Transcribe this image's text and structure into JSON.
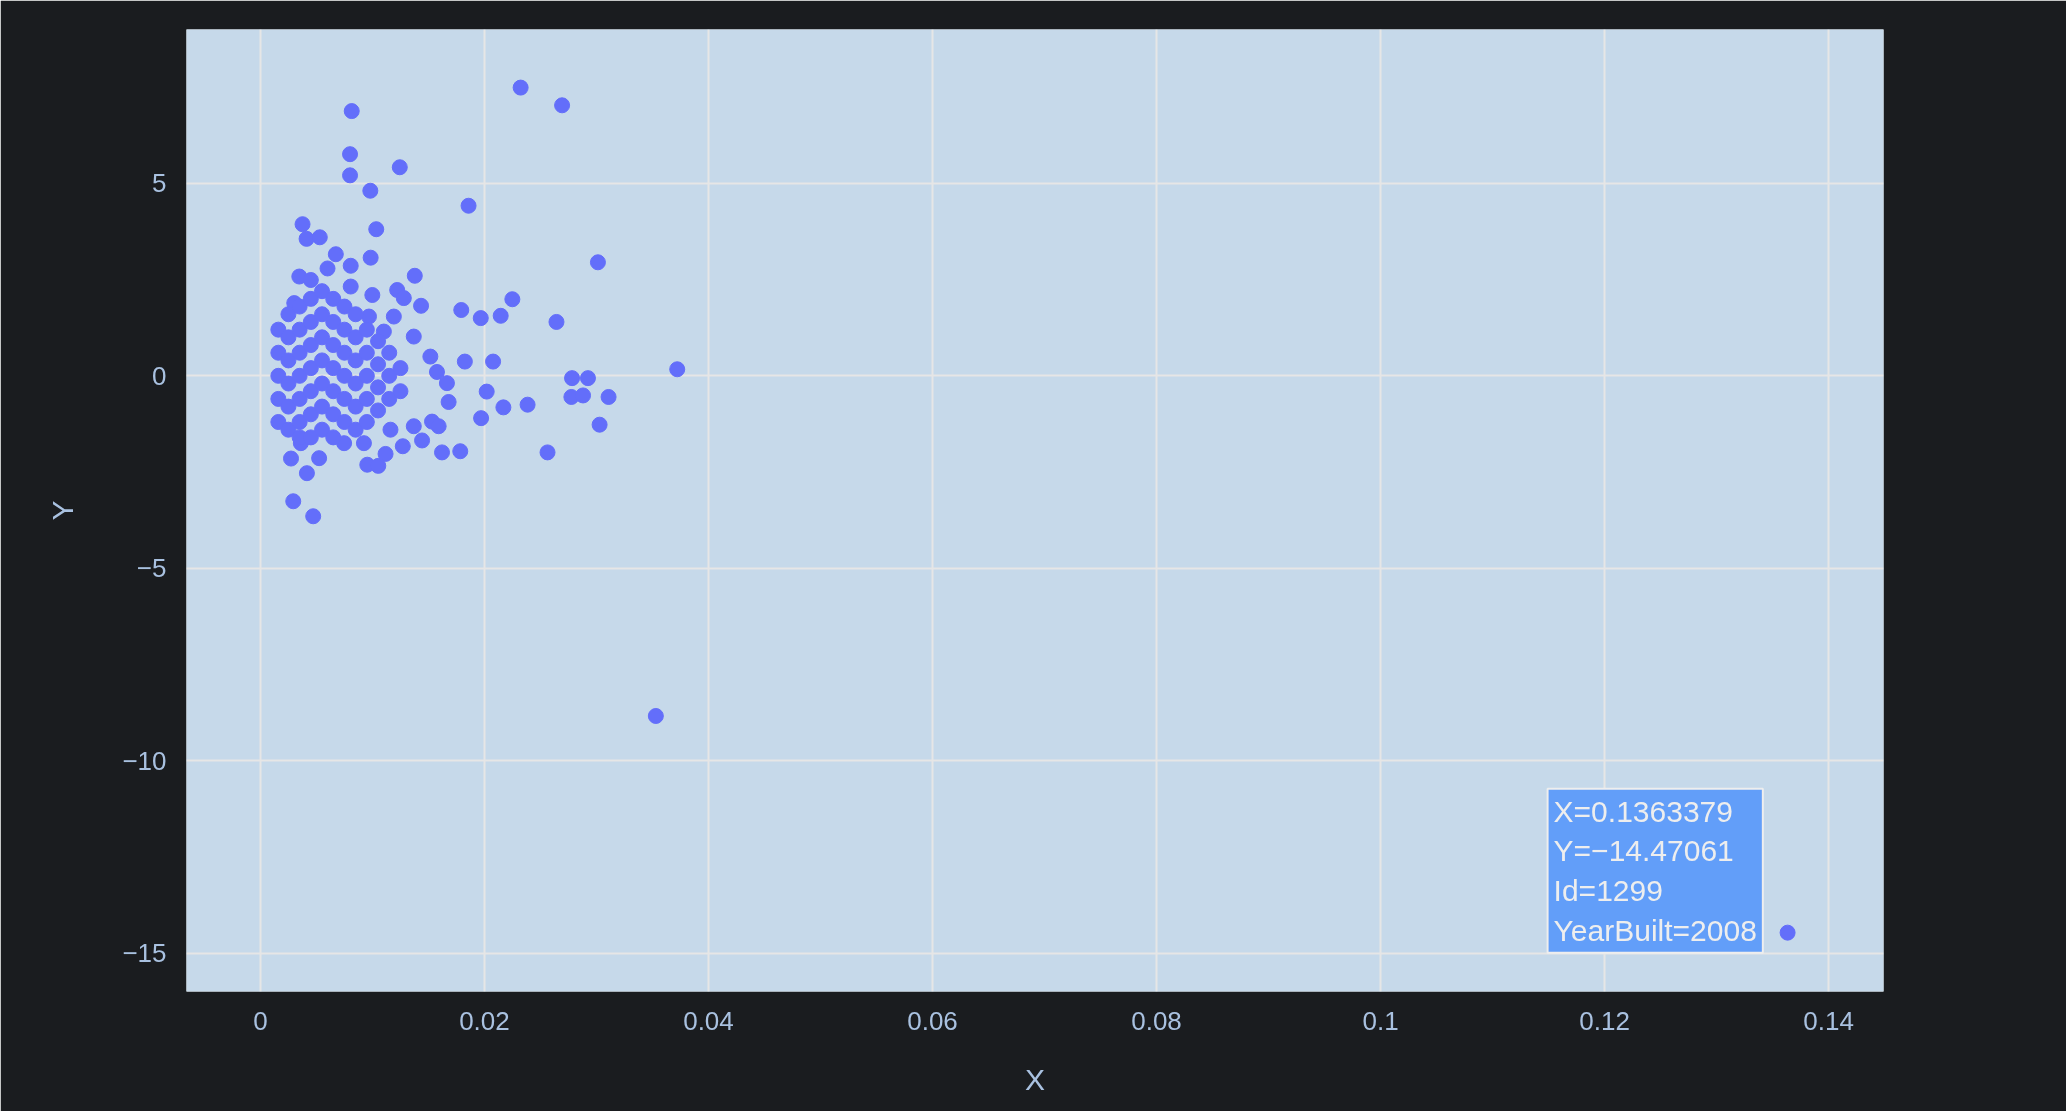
{
  "chart_data": {
    "type": "scatter",
    "xlabel": "X",
    "ylabel": "Y",
    "xlim": [
      -0.0066,
      0.1449
    ],
    "ylim": [
      -16.0,
      9.0
    ],
    "xticks": [
      0,
      0.02,
      0.04,
      0.06,
      0.08,
      0.1,
      0.12,
      0.14
    ],
    "yticks": [
      -15,
      -10,
      -5,
      0,
      5
    ],
    "grid": true,
    "marker": "circle",
    "annotations": [
      {
        "text": "X=0.1363379\nY=−14.47061\nId=1299\nYearBuilt=2008",
        "x": 0.1363379,
        "y": -14.47061
      }
    ],
    "series": [
      {
        "color": "#636efa",
        "x": [
          0.02323,
          0.02693,
          0.00815,
          0.008,
          0.008,
          0.01244,
          0.00981,
          0.01858,
          0.00376,
          0.00412,
          0.0053,
          0.01034,
          0.00673,
          0.00984,
          0.03013,
          0.01378,
          0.00806,
          0.02249,
          0.01793,
          0.01967,
          0.02145,
          0.02643,
          0.01434,
          0.02077,
          0.01825,
          0.03721,
          0.02782,
          0.02924,
          0.02776,
          0.0288,
          0.03108,
          0.03028,
          0.02563,
          0.02385,
          0.02169,
          0.0197,
          0.01784,
          0.01621,
          0.01443,
          0.01271,
          0.01117,
          0.00954,
          0.01052,
          0.00415,
          0.00273,
          0.00524,
          0.00293,
          0.00471,
          0.01576,
          0.01665,
          0.0168,
          0.01532,
          0.01591,
          0.0202,
          0.01517,
          0.01221,
          0.0128,
          0.01191,
          0.01369,
          0.01102,
          0.00969,
          0.00999,
          0.00806,
          0.00599,
          0.00347,
          0.0045,
          0.00302,
          0.01369,
          0.01161,
          0.00747,
          0.00924,
          0.00361,
          0.0353,
          0.1363379,
          0.0016,
          0.0016,
          0.0016,
          0.0016,
          0.0016,
          0.0025,
          0.0025,
          0.0025,
          0.0025,
          0.0025,
          0.0025,
          0.0035,
          0.0035,
          0.0035,
          0.0035,
          0.0035,
          0.0035,
          0.0035,
          0.0045,
          0.0045,
          0.0045,
          0.0045,
          0.0045,
          0.0045,
          0.0045,
          0.0055,
          0.0055,
          0.0055,
          0.0055,
          0.0055,
          0.0055,
          0.0055,
          0.0065,
          0.0065,
          0.0065,
          0.0065,
          0.0065,
          0.0065,
          0.0065,
          0.0075,
          0.0075,
          0.0075,
          0.0075,
          0.0075,
          0.0075,
          0.0085,
          0.0085,
          0.0085,
          0.0085,
          0.0085,
          0.0085,
          0.0095,
          0.0095,
          0.0095,
          0.0095,
          0.0095,
          0.0105,
          0.0105,
          0.0105,
          0.0105,
          0.0115,
          0.0115,
          0.0115,
          0.0125,
          0.0125
        ],
        "values": [
          7.49,
          7.03,
          6.88,
          5.76,
          5.21,
          5.42,
          4.81,
          4.42,
          3.94,
          3.56,
          3.6,
          3.81,
          3.16,
          3.07,
          2.95,
          2.6,
          2.86,
          1.99,
          1.71,
          1.5,
          1.56,
          1.4,
          1.82,
          0.37,
          0.37,
          0.17,
          -0.06,
          -0.06,
          -0.55,
          -0.51,
          -0.55,
          -1.27,
          -1.99,
          -0.75,
          -0.82,
          -1.1,
          -1.96,
          -1.99,
          -1.68,
          -1.83,
          -2.03,
          -2.31,
          -2.34,
          -2.53,
          -2.15,
          -2.14,
          -3.26,
          -3.65,
          0.1,
          -0.19,
          -0.68,
          -1.19,
          -1.31,
          -0.41,
          0.5,
          2.23,
          2.02,
          1.54,
          1.02,
          1.15,
          1.54,
          2.1,
          2.32,
          2.79,
          2.58,
          2.49,
          1.89,
          -1.31,
          -1.4,
          -1.75,
          -1.75,
          -1.75,
          -8.84,
          -14.47061,
          1.2,
          0.6,
          0,
          -0.6,
          -1.2,
          1.6,
          1.0,
          0.4,
          -0.2,
          -0.8,
          -1.4,
          1.8,
          1.2,
          0.6,
          0,
          -0.6,
          -1.2,
          -1.6,
          2.0,
          1.4,
          0.8,
          0.2,
          -0.4,
          -1.0,
          -1.6,
          2.2,
          1.6,
          1.0,
          0.4,
          -0.2,
          -0.8,
          -1.4,
          2.0,
          1.4,
          0.8,
          0.2,
          -0.4,
          -1.0,
          -1.6,
          1.8,
          1.2,
          0.6,
          0,
          -0.6,
          -1.2,
          1.6,
          1.0,
          0.4,
          -0.2,
          -0.8,
          -1.4,
          1.2,
          0.6,
          0,
          -0.6,
          -1.2,
          0.9,
          0.3,
          -0.3,
          -0.9,
          0.6,
          0,
          -0.6,
          0.2,
          -0.4
        ]
      }
    ]
  }
}
